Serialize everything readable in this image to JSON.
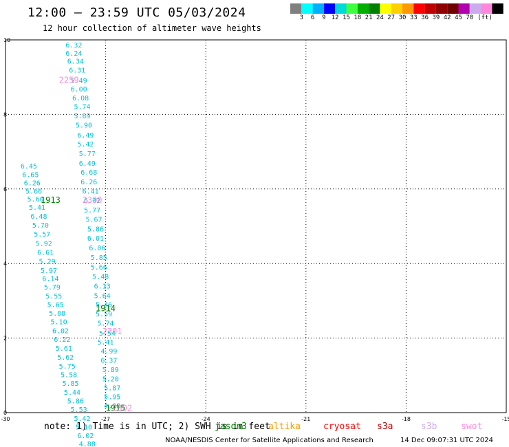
{
  "header": {
    "title": "12:00 — 23:59 UTC 05/03/2024",
    "subtitle": "12 hour collection of altimeter wave heights"
  },
  "color_scale": {
    "colors": [
      "#808080",
      "#00ffff",
      "#00b0ff",
      "#0000ff",
      "#00d9d9",
      "#40ff40",
      "#00b000",
      "#008000",
      "#ffff00",
      "#ffd000",
      "#ff9900",
      "#ff0000",
      "#c00000",
      "#900000",
      "#700000",
      "#b000b0",
      "#ccaaee",
      "#ff88dd",
      "#000000"
    ],
    "labels": [
      "3",
      "6",
      "9",
      "12",
      "15",
      "18",
      "21",
      "24",
      "27",
      "30",
      "33",
      "36",
      "39",
      "42",
      "45",
      "70"
    ],
    "unit": "(ft)"
  },
  "map": {
    "x_ticks": [
      "-30",
      "-27",
      "-24",
      "-21",
      "-18",
      "-15"
    ],
    "y_ticks": [
      "0",
      "2",
      "4",
      "6",
      "8",
      "10"
    ],
    "wave_color": "#00c0d8",
    "wave_labels": [
      {
        "lon": -28.2,
        "lat": 9.8,
        "text": "6.32"
      },
      {
        "lon": -28.2,
        "lat": 9.58,
        "text": "6.24"
      },
      {
        "lon": -28.15,
        "lat": 9.36,
        "text": "6.34"
      },
      {
        "lon": -28.1,
        "lat": 9.12,
        "text": "6.31"
      },
      {
        "lon": -28.05,
        "lat": 8.85,
        "text": "5.49"
      },
      {
        "lon": -28.05,
        "lat": 8.62,
        "text": "6.00"
      },
      {
        "lon": -28.0,
        "lat": 8.38,
        "text": "6.08"
      },
      {
        "lon": -27.95,
        "lat": 8.15,
        "text": "5.74"
      },
      {
        "lon": -27.95,
        "lat": 7.9,
        "text": "5.89"
      },
      {
        "lon": -27.9,
        "lat": 7.65,
        "text": "5.90"
      },
      {
        "lon": -27.85,
        "lat": 7.38,
        "text": "6.49"
      },
      {
        "lon": -27.85,
        "lat": 7.14,
        "text": "5.42"
      },
      {
        "lon": -27.8,
        "lat": 6.88,
        "text": "5.77"
      },
      {
        "lon": -27.8,
        "lat": 6.62,
        "text": "6.49"
      },
      {
        "lon": -27.75,
        "lat": 6.38,
        "text": "6.68"
      },
      {
        "lon": -27.75,
        "lat": 6.13,
        "text": "6.26"
      },
      {
        "lon": -27.7,
        "lat": 5.88,
        "text": "6.41"
      },
      {
        "lon": -27.65,
        "lat": 5.63,
        "text": "6.02"
      },
      {
        "lon": -27.65,
        "lat": 5.37,
        "text": "5.77"
      },
      {
        "lon": -27.6,
        "lat": 5.12,
        "text": "5.67"
      },
      {
        "lon": -27.55,
        "lat": 4.86,
        "text": "5.86"
      },
      {
        "lon": -27.55,
        "lat": 4.61,
        "text": "6.01"
      },
      {
        "lon": -27.5,
        "lat": 4.35,
        "text": "6.06"
      },
      {
        "lon": -27.45,
        "lat": 4.1,
        "text": "5.85"
      },
      {
        "lon": -27.45,
        "lat": 3.84,
        "text": "5.66"
      },
      {
        "lon": -27.4,
        "lat": 3.59,
        "text": "5.48"
      },
      {
        "lon": -27.35,
        "lat": 3.33,
        "text": "6.13"
      },
      {
        "lon": -27.35,
        "lat": 3.07,
        "text": "5.64"
      },
      {
        "lon": -27.3,
        "lat": 2.83,
        "text": "5.46"
      },
      {
        "lon": -27.3,
        "lat": 2.58,
        "text": "5.59"
      },
      {
        "lon": -27.25,
        "lat": 2.33,
        "text": "5.74"
      },
      {
        "lon": -27.2,
        "lat": 2.07,
        "text": "5.54"
      },
      {
        "lon": -27.25,
        "lat": 1.83,
        "text": "5.41"
      },
      {
        "lon": -27.15,
        "lat": 1.59,
        "text": "4.99"
      },
      {
        "lon": -27.15,
        "lat": 1.34,
        "text": "6.37"
      },
      {
        "lon": -27.1,
        "lat": 1.09,
        "text": "5.89"
      },
      {
        "lon": -27.1,
        "lat": 0.84,
        "text": "5.20"
      },
      {
        "lon": -27.05,
        "lat": 0.6,
        "text": "5.87"
      },
      {
        "lon": -27.05,
        "lat": 0.36,
        "text": "5.95"
      },
      {
        "lon": -27.05,
        "lat": 0.12,
        "text": "4.88"
      },
      {
        "lon": -29.55,
        "lat": 6.55,
        "text": "6.45"
      },
      {
        "lon": -29.5,
        "lat": 6.32,
        "text": "6.65"
      },
      {
        "lon": -29.45,
        "lat": 6.1,
        "text": "6.26"
      },
      {
        "lon": -29.4,
        "lat": 5.88,
        "text": "5.66"
      },
      {
        "lon": -29.35,
        "lat": 5.66,
        "text": "5.60"
      },
      {
        "lon": -29.3,
        "lat": 5.44,
        "text": "5.41"
      },
      {
        "lon": -29.25,
        "lat": 5.2,
        "text": "6.48"
      },
      {
        "lon": -29.2,
        "lat": 4.96,
        "text": "5.70"
      },
      {
        "lon": -29.15,
        "lat": 4.72,
        "text": "5.57"
      },
      {
        "lon": -29.1,
        "lat": 4.47,
        "text": "5.92"
      },
      {
        "lon": -29.05,
        "lat": 4.23,
        "text": "6.61"
      },
      {
        "lon": -29.0,
        "lat": 3.99,
        "text": "5.29"
      },
      {
        "lon": -28.95,
        "lat": 3.75,
        "text": "5.97"
      },
      {
        "lon": -28.9,
        "lat": 3.53,
        "text": "6.14"
      },
      {
        "lon": -28.85,
        "lat": 3.3,
        "text": "5.79"
      },
      {
        "lon": -28.8,
        "lat": 3.06,
        "text": "5.55"
      },
      {
        "lon": -28.75,
        "lat": 2.83,
        "text": "5.65"
      },
      {
        "lon": -28.7,
        "lat": 2.6,
        "text": "5.88"
      },
      {
        "lon": -28.65,
        "lat": 2.37,
        "text": "5.10"
      },
      {
        "lon": -28.6,
        "lat": 2.13,
        "text": "6.02"
      },
      {
        "lon": -28.55,
        "lat": 1.9,
        "text": "6.22"
      },
      {
        "lon": -28.5,
        "lat": 1.66,
        "text": "5.61"
      },
      {
        "lon": -28.45,
        "lat": 1.42,
        "text": "5.62"
      },
      {
        "lon": -28.4,
        "lat": 1.18,
        "text": "5.75"
      },
      {
        "lon": -28.35,
        "lat": 0.95,
        "text": "5.58"
      },
      {
        "lon": -28.3,
        "lat": 0.72,
        "text": "5.85"
      },
      {
        "lon": -28.25,
        "lat": 0.48,
        "text": "5.44"
      },
      {
        "lon": -28.15,
        "lat": 0.25,
        "text": "5.86"
      },
      {
        "lon": -28.05,
        "lat": 0.02,
        "text": "5.53"
      },
      {
        "lon": -27.95,
        "lat": -0.22,
        "text": "5.42"
      },
      {
        "lon": -27.9,
        "lat": -0.45,
        "text": "5.10"
      },
      {
        "lon": -27.85,
        "lat": -0.68,
        "text": "6.02"
      },
      {
        "lon": -27.8,
        "lat": -0.9,
        "text": "4.88"
      }
    ],
    "time_labels": [
      {
        "lon": -28.95,
        "lat": 5.63,
        "text": "1913",
        "color": "#008000"
      },
      {
        "lon": -27.3,
        "lat": 2.72,
        "text": "1914",
        "color": "#008000"
      },
      {
        "lon": -27.0,
        "lat": 0.05,
        "text": "1915",
        "color": "#008000"
      },
      {
        "lon": -28.4,
        "lat": 8.85,
        "text": "2259",
        "color": "#ff88dd"
      },
      {
        "lon": -27.7,
        "lat": 5.63,
        "text": "2300",
        "color": "#ff88dd"
      },
      {
        "lon": -27.1,
        "lat": 2.1,
        "text": "2301",
        "color": "#ff88dd"
      },
      {
        "lon": -26.8,
        "lat": 0.05,
        "text": "2302",
        "color": "#ff88dd"
      }
    ]
  },
  "footer": {
    "note": "note: 1) Time is in UTC; 2) SWH is in feet",
    "satellites": [
      {
        "name": "jason3",
        "color": "#008000"
      },
      {
        "name": "altika",
        "color": "#ff9900"
      },
      {
        "name": "cryosat",
        "color": "#ff0000"
      },
      {
        "name": "s3a",
        "color": "#c00000"
      },
      {
        "name": "s3b",
        "color": "#ccaaee"
      },
      {
        "name": "swot",
        "color": "#ff88dd"
      }
    ],
    "credit": "NOAA/NESDIS Center for Satellite Applications and Research",
    "timestamp": "14 Dec 09:07:31 UTC 2024"
  }
}
